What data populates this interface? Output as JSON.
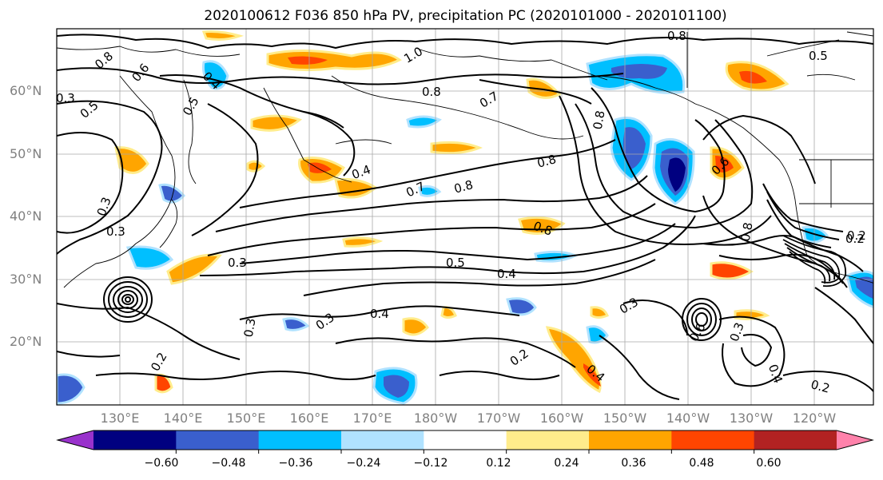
{
  "title": "2020100612 F036 850 hPa PV, precipitation PC (2020101000 - 2020101100)",
  "lat_labels": [
    {
      "text": "60°N"
    },
    {
      "text": "50°N"
    },
    {
      "text": "40°N"
    },
    {
      "text": "30°N"
    },
    {
      "text": "20°N"
    }
  ],
  "lon_labels": [
    "130°E",
    "140°E",
    "150°E",
    "160°E",
    "170°E",
    "180°W",
    "170°W",
    "160°W",
    "150°W",
    "140°W",
    "130°W",
    "120°W"
  ],
  "colorbar": {
    "colors": [
      "#9932CC",
      "#000080",
      "#3A5FCD",
      "#00BFFF",
      "#B0E2FF",
      "#FFFFFF",
      "#FFEC8B",
      "#FFA500",
      "#FF4500",
      "#B22222",
      "#FF82AB"
    ],
    "ticks": [
      "−0.60",
      "−0.48",
      "−0.36",
      "−0.24",
      "−0.12",
      "0.12",
      "0.24",
      "0.36",
      "0.48",
      "0.60"
    ]
  },
  "contour_labels": [
    "0.8",
    "0.6",
    "0.4",
    "0.5",
    "0.3",
    "1.0",
    "0.8",
    "0.7",
    "0.8",
    "0.3",
    "0.5",
    "0.4",
    "0.7",
    "0.8",
    "0.6",
    "0.8",
    "0.2",
    "0.3",
    "0.8",
    "0.3",
    "0.5",
    "0.4",
    "0.3",
    "0.4",
    "0.3",
    "0.2",
    "0.2",
    "0.4",
    "0.3",
    "0.6",
    "0.3",
    "0.4",
    "0.2",
    "0.2",
    "0.8",
    "0.8",
    "0.5"
  ]
}
